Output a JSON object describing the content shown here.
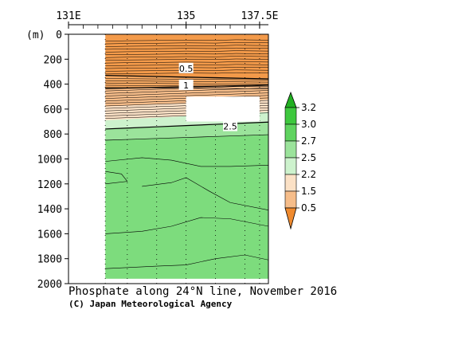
{
  "chart_data": {
    "type": "contour",
    "title": "Phosphate along 24°N line, November 2016",
    "credit": "(C) Japan Meteorological Agency",
    "x_axis": {
      "tick_labels": [
        "131E",
        "135",
        "137.5E"
      ],
      "tick_values": [
        131,
        135,
        137.5
      ],
      "range": [
        131,
        137.8
      ]
    },
    "y_axis": {
      "unit_label": "(m)",
      "tick_values": [
        0,
        200,
        400,
        600,
        800,
        1000,
        1200,
        1400,
        1600,
        1800,
        2000
      ],
      "range": [
        0,
        2000
      ],
      "inverted": true
    },
    "station_longitudes": [
      132.25,
      133.0,
      134.0,
      135.0,
      136.0,
      137.0,
      137.5
    ],
    "data_extent_lon": [
      132.25,
      137.8
    ],
    "missing_region": {
      "lon": [
        135.0,
        137.5
      ],
      "depth": [
        500,
        700
      ]
    },
    "contour_labels": [
      {
        "text": "0.5",
        "lon": 135.0,
        "depth": 280
      },
      {
        "text": "1",
        "lon": 135.0,
        "depth": 415
      },
      {
        "text": "2.5",
        "lon": 136.5,
        "depth": 745
      }
    ],
    "colorbar": {
      "labels": [
        "3.2",
        "3.0",
        "2.7",
        "2.5",
        "2.2",
        "1.5",
        "0.5"
      ],
      "colors": [
        "#3ec83e",
        "#5fd35f",
        "#9be39b",
        "#cdf2cd",
        "#fbe1c6",
        "#f6bd8a",
        "#f39a4a"
      ],
      "top_arrow_color": "#22b022",
      "bottom_arrow_color": "#ef8a2e"
    }
  }
}
